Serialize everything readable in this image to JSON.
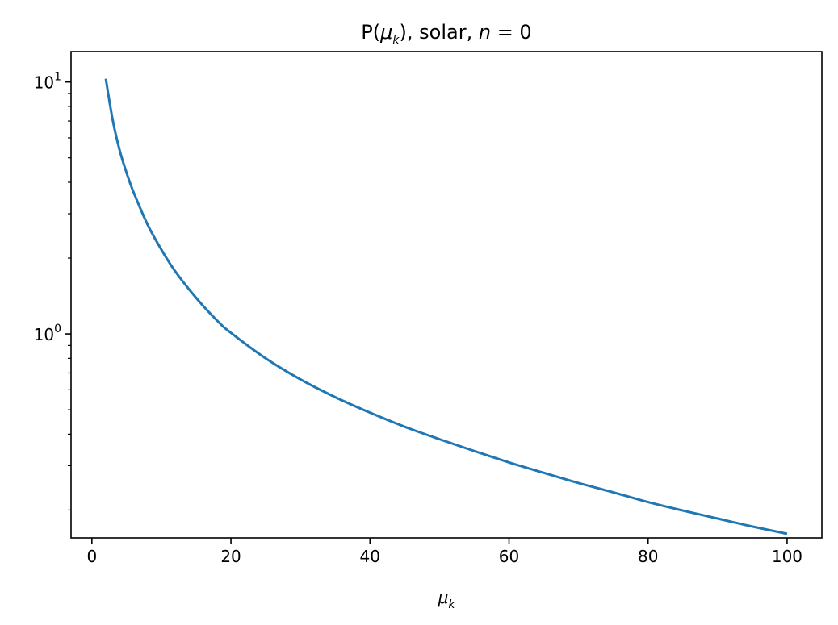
{
  "chart_data": {
    "type": "line",
    "title": {
      "prefix": "P(",
      "mu": "μ",
      "mu_sub": "k",
      "suffix": "), solar, ",
      "n": "n",
      "equals": " = 0"
    },
    "xlabel": {
      "mu": "μ",
      "sub": "k"
    },
    "ylabel": "",
    "x_scale": "linear",
    "y_scale": "log",
    "xlim": [
      -3,
      105
    ],
    "ylim": [
      0.155,
      13.2
    ],
    "x_ticks": [
      {
        "value": 0,
        "label": "0"
      },
      {
        "value": 20,
        "label": "20"
      },
      {
        "value": 40,
        "label": "40"
      },
      {
        "value": 60,
        "label": "60"
      },
      {
        "value": 80,
        "label": "80"
      },
      {
        "value": 100,
        "label": "100"
      }
    ],
    "y_major_ticks": [
      {
        "value": 1,
        "base": "10",
        "exp": "0"
      },
      {
        "value": 10,
        "base": "10",
        "exp": "1"
      }
    ],
    "y_minor_ticks": [
      0.2,
      0.3,
      0.4,
      0.5,
      0.6,
      0.7,
      0.8,
      0.9,
      2,
      3,
      4,
      5,
      6,
      7,
      8,
      9
    ],
    "grid": false,
    "legend": "none",
    "series": [
      {
        "color": "#1f77b4",
        "x": [
          2,
          3,
          4,
          5,
          6,
          8,
          10,
          12,
          15,
          18,
          20,
          25,
          30,
          35,
          40,
          45,
          50,
          55,
          60,
          65,
          70,
          75,
          80,
          85,
          90,
          95,
          100
        ],
        "y": [
          10.3,
          7.05,
          5.35,
          4.35,
          3.65,
          2.72,
          2.16,
          1.77,
          1.39,
          1.13,
          1.01,
          0.8,
          0.66,
          0.561,
          0.487,
          0.428,
          0.382,
          0.343,
          0.309,
          0.281,
          0.256,
          0.235,
          0.215,
          0.199,
          0.185,
          0.172,
          0.161
        ]
      }
    ]
  }
}
